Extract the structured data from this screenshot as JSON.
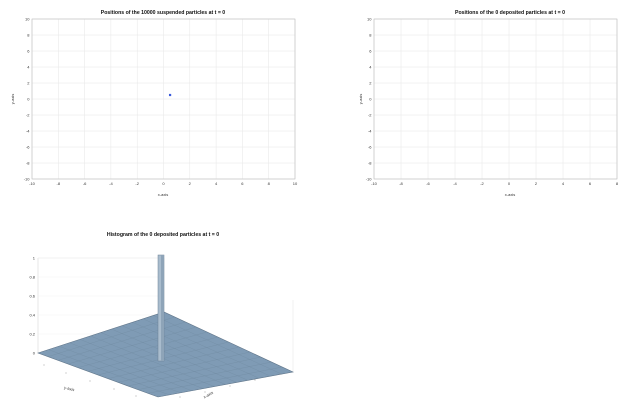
{
  "chart_data": [
    {
      "type": "scatter",
      "title": "Positions of the 10000 suspended particles at t = 0",
      "xlabel": "x-axis",
      "ylabel": "y-axis",
      "xlim": [
        -10,
        10
      ],
      "ylim": [
        -10,
        10
      ],
      "xticks": [
        -10,
        -8,
        -6,
        -4,
        -2,
        0,
        2,
        4,
        6,
        8,
        10
      ],
      "yticks": [
        -10,
        -8,
        -6,
        -4,
        -2,
        0,
        2,
        4,
        6,
        8,
        10
      ],
      "grid": true,
      "points": [
        {
          "x": 0.5,
          "y": 0.5
        }
      ],
      "color": "#3b5bdb"
    },
    {
      "type": "scatter",
      "title": "Positions of the 0 deposited particles at t = 0",
      "xlabel": "x-axis",
      "ylabel": "y-axis",
      "xlim": [
        -10,
        8
      ],
      "ylim": [
        -10,
        10
      ],
      "xticks": [
        -10,
        -8,
        -6,
        -4,
        -2,
        0,
        2,
        4,
        6,
        8
      ],
      "yticks": [
        -10,
        -8,
        -6,
        -4,
        -2,
        0,
        2,
        4,
        6,
        8,
        10
      ],
      "grid": true,
      "points": []
    },
    {
      "type": "bar3d",
      "title": "Histogram of the 0 deposited particles at t = 0",
      "xlabel": "x-axis",
      "ylabel": "y-axis",
      "zlim": [
        0,
        1
      ],
      "zticks": [
        0,
        0.2,
        0.4,
        0.6,
        0.8,
        1
      ],
      "peak": {
        "x": 0,
        "y": 0,
        "z": 1
      },
      "surface_color": "#7f9bb5"
    }
  ]
}
